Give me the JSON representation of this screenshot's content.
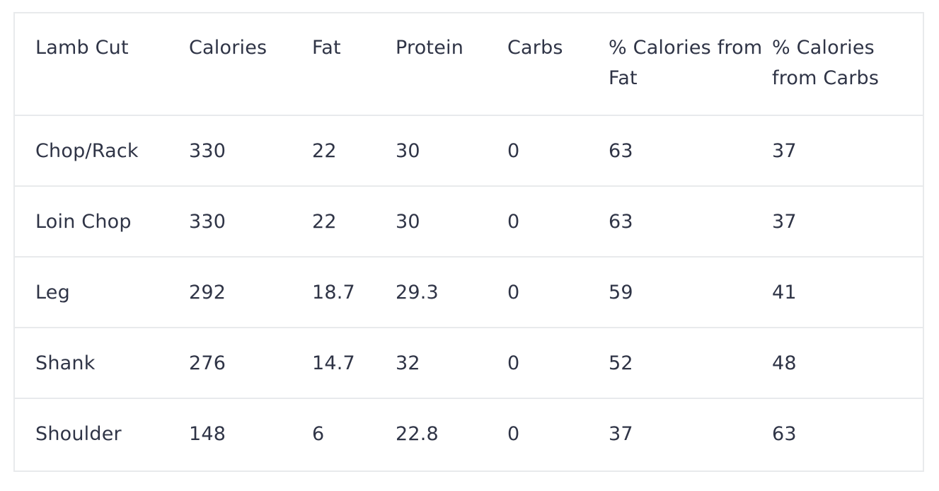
{
  "table": {
    "headers": [
      "Lamb Cut",
      "Calories",
      "Fat",
      "Protein",
      "Carbs",
      "% Calories from Fat",
      "% Calories from Carbs"
    ],
    "rows": [
      [
        "Chop/Rack",
        "330",
        "22",
        "30",
        "0",
        "63",
        "37"
      ],
      [
        "Loin Chop",
        "330",
        "22",
        "30",
        "0",
        "63",
        "37"
      ],
      [
        "Leg",
        "292",
        "18.7",
        "29.3",
        "0",
        "59",
        "41"
      ],
      [
        "Shank",
        "276",
        "14.7",
        "32",
        "0",
        "52",
        "48"
      ],
      [
        "Shoulder",
        "148",
        "6",
        "22.8",
        "0",
        "37",
        "63"
      ]
    ]
  },
  "colors": {
    "text": "#2f3446",
    "border": "#e8eaec",
    "background": "#ffffff"
  }
}
